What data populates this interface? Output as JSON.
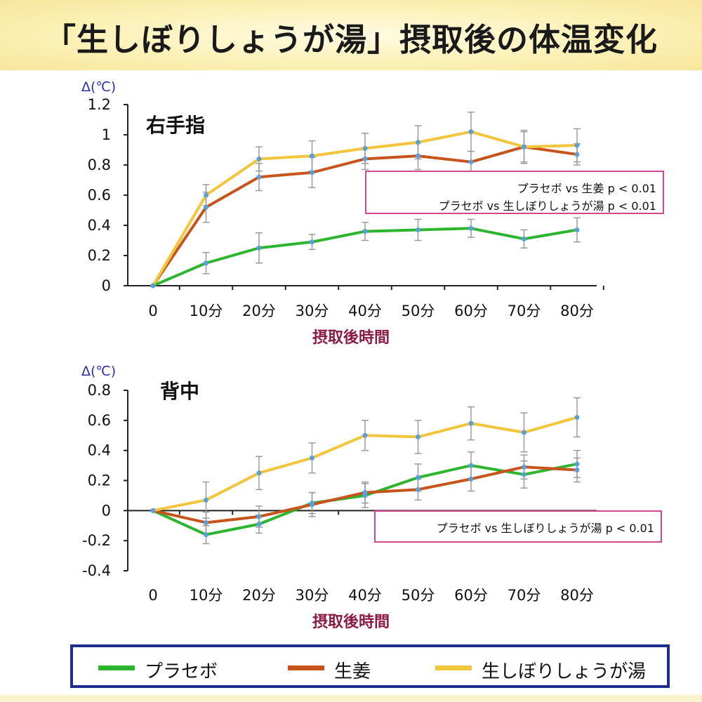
{
  "title": "「生しぼりしょうが湯」摂取後の体温変化",
  "colors": {
    "placebo": "#2db52f",
    "ginger": "#c6541c",
    "drink": "#f2c53d",
    "error_bar": "#9c9c9c",
    "marker": "#5a9fd6",
    "annotation_border": "#d0488e",
    "xlabel": "#8b1a45",
    "ylabel": "#2a2fa3",
    "legend_border": "#1f2d8f"
  },
  "legend": [
    {
      "key": "placebo",
      "label": "プラセボ"
    },
    {
      "key": "ginger",
      "label": "生姜"
    },
    {
      "key": "drink",
      "label": "生しぼりしょうが湯"
    }
  ],
  "chart_data": [
    {
      "type": "line",
      "title": "右手指",
      "ylabel": "Δ(℃)",
      "xlabel": "摂取後時間",
      "categories": [
        "0",
        "10分",
        "20分",
        "30分",
        "40分",
        "50分",
        "60分",
        "70分",
        "80分"
      ],
      "ylim": [
        0,
        1.2
      ],
      "yticks": [
        0,
        0.2,
        0.4,
        0.6,
        0.8,
        1,
        1.2
      ],
      "ytick_labels": [
        "0",
        "0.2",
        "0.4",
        "0.6",
        "0.8",
        "1",
        "1.2"
      ],
      "series": [
        {
          "key": "placebo",
          "name": "プラセボ",
          "values": [
            0,
            0.15,
            0.25,
            0.29,
            0.36,
            0.37,
            0.38,
            0.31,
            0.37
          ],
          "errors": [
            0,
            0.07,
            0.1,
            0.05,
            0.06,
            0.07,
            0.06,
            0.06,
            0.08
          ]
        },
        {
          "key": "ginger",
          "name": "生姜",
          "values": [
            0,
            0.52,
            0.72,
            0.75,
            0.84,
            0.86,
            0.82,
            0.92,
            0.87
          ],
          "errors": [
            0,
            0.1,
            0.09,
            0.1,
            0.07,
            0.09,
            0.07,
            0.1,
            0.07
          ]
        },
        {
          "key": "drink",
          "name": "生しぼりしょうが湯",
          "values": [
            0,
            0.6,
            0.84,
            0.86,
            0.91,
            0.95,
            1.02,
            0.92,
            0.93
          ],
          "errors": [
            0,
            0.07,
            0.08,
            0.1,
            0.1,
            0.11,
            0.13,
            0.11,
            0.11
          ]
        }
      ],
      "annotations": [
        "プラセボ vs 生姜 p < 0.01",
        "プラセボ vs 生しぼりしょうが湯 p < 0.01"
      ]
    },
    {
      "type": "line",
      "title": "背中",
      "ylabel": "Δ(℃)",
      "xlabel": "摂取後時間",
      "categories": [
        "0",
        "10分",
        "20分",
        "30分",
        "40分",
        "50分",
        "60分",
        "70分",
        "80分"
      ],
      "ylim": [
        -0.4,
        0.8
      ],
      "yticks": [
        -0.4,
        -0.2,
        0,
        0.2,
        0.4,
        0.6,
        0.8
      ],
      "ytick_labels": [
        "-0.4",
        "-0.2",
        "0",
        "0.2",
        "0.4",
        "0.6",
        "0.8"
      ],
      "series": [
        {
          "key": "placebo",
          "name": "プラセボ",
          "values": [
            0,
            -0.16,
            -0.09,
            0.05,
            0.1,
            0.22,
            0.3,
            0.24,
            0.31
          ],
          "errors": [
            0,
            0.06,
            0.06,
            0.07,
            0.08,
            0.09,
            0.09,
            0.09,
            0.09
          ]
        },
        {
          "key": "ginger",
          "name": "生姜",
          "values": [
            0,
            -0.08,
            -0.04,
            0.04,
            0.12,
            0.14,
            0.21,
            0.29,
            0.27
          ],
          "errors": [
            0,
            0.07,
            0.07,
            0.08,
            0.07,
            0.07,
            0.08,
            0.08,
            0.08
          ]
        },
        {
          "key": "drink",
          "name": "生しぼりしょうが湯",
          "values": [
            0,
            0.07,
            0.25,
            0.35,
            0.5,
            0.49,
            0.58,
            0.52,
            0.62
          ],
          "errors": [
            0,
            0.12,
            0.11,
            0.1,
            0.1,
            0.11,
            0.11,
            0.13,
            0.13
          ]
        }
      ],
      "annotations": [
        "プラセボ vs 生しぼりしょうが湯 p < 0.01"
      ]
    }
  ]
}
